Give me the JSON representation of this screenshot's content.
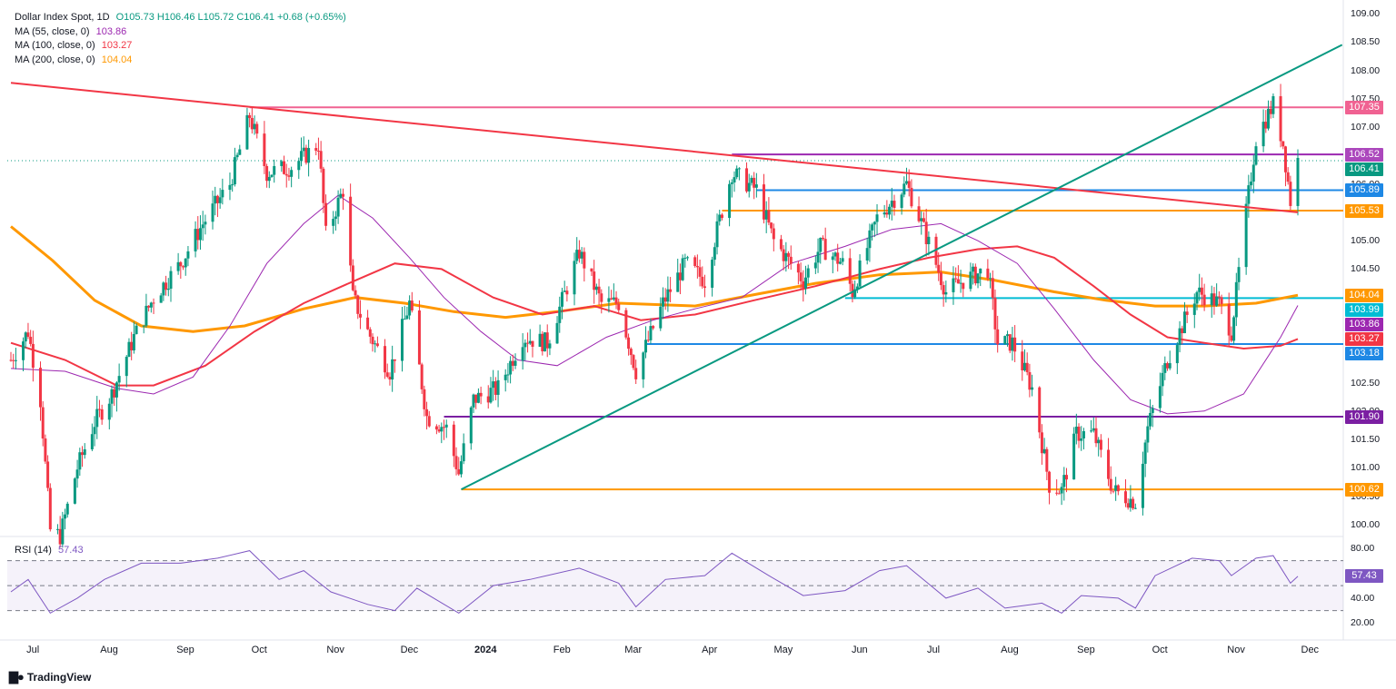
{
  "legend": {
    "symbol": "Dollar Index Spot, 1D",
    "ohlc": "O105.73 H106.46 L105.72 C106.41 +0.68 (+0.65%)",
    "ma55_label": "MA (55, close, 0)",
    "ma55_value": "103.86",
    "ma100_label": "MA (100, close, 0)",
    "ma100_value": "103.27",
    "ma200_label": "MA (200, close, 0)",
    "ma200_value": "104.04",
    "rsi_label": "RSI (14)",
    "rsi_value": "57.43"
  },
  "brand": "TradingView",
  "colors": {
    "up": "#089981",
    "down": "#f23645",
    "ma55": "#9c27b0",
    "ma100": "#f23645",
    "ma200": "#ff9800",
    "rsi": "#7e57c2",
    "trend_up": "#089981",
    "trend_down": "#f23645"
  },
  "chart_data": {
    "type": "candlestick",
    "title": "Dollar Index Spot, 1D",
    "x_ticks": [
      "Jul",
      "Aug",
      "Sep",
      "Oct",
      "Nov",
      "Dec",
      "2024",
      "Feb",
      "Mar",
      "Apr",
      "May",
      "Jun",
      "Jul",
      "Aug",
      "Sep",
      "Oct",
      "Nov",
      "Dec"
    ],
    "y_ticks": [
      "109.00",
      "108.50",
      "108.00",
      "107.50",
      "107.00",
      "106.50",
      "106.00",
      "105.50",
      "105.00",
      "104.50",
      "104.00",
      "103.50",
      "103.00",
      "102.50",
      "102.00",
      "101.50",
      "101.00",
      "100.50",
      "100.00"
    ],
    "ylim": [
      99.95,
      109.0
    ],
    "price_path": [
      [
        "2023-06-28",
        102.9
      ],
      [
        "2023-07-05",
        103.4
      ],
      [
        "2023-07-10",
        102.2
      ],
      [
        "2023-07-14",
        99.9
      ],
      [
        "2023-07-18",
        99.8
      ],
      [
        "2023-07-25",
        101.0
      ],
      [
        "2023-08-01",
        101.8
      ],
      [
        "2023-08-08",
        102.3
      ],
      [
        "2023-08-17",
        103.3
      ],
      [
        "2023-08-25",
        104.0
      ],
      [
        "2023-09-05",
        104.6
      ],
      [
        "2023-09-14",
        105.3
      ],
      [
        "2023-09-25",
        106.0
      ],
      [
        "2023-10-03",
        107.2
      ],
      [
        "2023-10-10",
        106.2
      ],
      [
        "2023-10-20",
        106.3
      ],
      [
        "2023-10-31",
        106.7
      ],
      [
        "2023-11-03",
        105.1
      ],
      [
        "2023-11-10",
        105.9
      ],
      [
        "2023-11-14",
        104.0
      ],
      [
        "2023-11-20",
        103.4
      ],
      [
        "2023-11-29",
        102.7
      ],
      [
        "2023-12-07",
        103.9
      ],
      [
        "2023-12-14",
        101.9
      ],
      [
        "2023-12-22",
        101.7
      ],
      [
        "2023-12-27",
        100.9
      ],
      [
        "2024-01-02",
        102.2
      ],
      [
        "2024-01-12",
        102.4
      ],
      [
        "2024-01-22",
        103.3
      ],
      [
        "2024-02-01",
        103.2
      ],
      [
        "2024-02-14",
        104.8
      ],
      [
        "2024-02-23",
        103.9
      ],
      [
        "2024-03-01",
        103.9
      ],
      [
        "2024-03-08",
        102.7
      ],
      [
        "2024-03-19",
        103.9
      ],
      [
        "2024-03-28",
        104.6
      ],
      [
        "2024-04-05",
        104.3
      ],
      [
        "2024-04-10",
        105.2
      ],
      [
        "2024-04-16",
        106.2
      ],
      [
        "2024-04-26",
        105.9
      ],
      [
        "2024-05-03",
        105.0
      ],
      [
        "2024-05-15",
        104.3
      ],
      [
        "2024-05-22",
        104.9
      ],
      [
        "2024-05-31",
        104.6
      ],
      [
        "2024-06-04",
        104.1
      ],
      [
        "2024-06-14",
        105.4
      ],
      [
        "2024-06-26",
        106.0
      ],
      [
        "2024-07-03",
        105.2
      ],
      [
        "2024-07-12",
        104.1
      ],
      [
        "2024-07-19",
        104.3
      ],
      [
        "2024-07-29",
        104.5
      ],
      [
        "2024-08-02",
        103.2
      ],
      [
        "2024-08-08",
        103.2
      ],
      [
        "2024-08-16",
        102.4
      ],
      [
        "2024-08-23",
        100.7
      ],
      [
        "2024-08-28",
        100.6
      ],
      [
        "2024-09-03",
        101.6
      ],
      [
        "2024-09-10",
        101.6
      ],
      [
        "2024-09-18",
        100.6
      ],
      [
        "2024-09-27",
        100.4
      ],
      [
        "2024-10-02",
        101.7
      ],
      [
        "2024-10-10",
        102.9
      ],
      [
        "2024-10-22",
        104.1
      ],
      [
        "2024-10-31",
        103.9
      ],
      [
        "2024-11-05",
        103.4
      ],
      [
        "2024-11-11",
        105.5
      ],
      [
        "2024-11-15",
        106.8
      ],
      [
        "2024-11-22",
        107.4
      ],
      [
        "2024-11-26",
        106.7
      ],
      [
        "2024-11-29",
        105.7
      ],
      [
        "2024-12-02",
        106.41
      ]
    ],
    "ma55": [
      [
        "2023-06-28",
        102.75
      ],
      [
        "2023-07-20",
        102.7
      ],
      [
        "2023-08-10",
        102.4
      ],
      [
        "2023-08-25",
        102.3
      ],
      [
        "2023-09-10",
        102.6
      ],
      [
        "2023-09-25",
        103.5
      ],
      [
        "2023-10-10",
        104.6
      ],
      [
        "2023-10-25",
        105.3
      ],
      [
        "2023-11-08",
        105.8
      ],
      [
        "2023-11-22",
        105.4
      ],
      [
        "2023-12-07",
        104.7
      ],
      [
        "2023-12-21",
        104.0
      ],
      [
        "2024-01-05",
        103.4
      ],
      [
        "2024-01-20",
        102.9
      ],
      [
        "2024-02-05",
        102.8
      ],
      [
        "2024-02-25",
        103.3
      ],
      [
        "2024-03-15",
        103.6
      ],
      [
        "2024-04-01",
        103.8
      ],
      [
        "2024-04-20",
        104.0
      ],
      [
        "2024-05-10",
        104.6
      ],
      [
        "2024-06-01",
        104.9
      ],
      [
        "2024-06-20",
        105.2
      ],
      [
        "2024-07-10",
        105.3
      ],
      [
        "2024-07-25",
        105.0
      ],
      [
        "2024-08-10",
        104.6
      ],
      [
        "2024-08-25",
        103.8
      ],
      [
        "2024-09-10",
        102.9
      ],
      [
        "2024-09-25",
        102.2
      ],
      [
        "2024-10-10",
        101.95
      ],
      [
        "2024-10-25",
        102.0
      ],
      [
        "2024-11-10",
        102.3
      ],
      [
        "2024-11-25",
        103.3
      ],
      [
        "2024-12-02",
        103.86
      ]
    ],
    "ma100": [
      [
        "2023-06-28",
        103.2
      ],
      [
        "2023-07-20",
        102.9
      ],
      [
        "2023-08-10",
        102.45
      ],
      [
        "2023-08-25",
        102.45
      ],
      [
        "2023-09-15",
        102.8
      ],
      [
        "2023-10-05",
        103.4
      ],
      [
        "2023-10-25",
        103.9
      ],
      [
        "2023-11-15",
        104.3
      ],
      [
        "2023-12-01",
        104.6
      ],
      [
        "2023-12-20",
        104.5
      ],
      [
        "2024-01-10",
        104.0
      ],
      [
        "2024-01-30",
        103.7
      ],
      [
        "2024-02-20",
        103.85
      ],
      [
        "2024-03-10",
        103.6
      ],
      [
        "2024-04-01",
        103.7
      ],
      [
        "2024-04-25",
        103.95
      ],
      [
        "2024-05-20",
        104.2
      ],
      [
        "2024-06-15",
        104.5
      ],
      [
        "2024-07-05",
        104.7
      ],
      [
        "2024-07-25",
        104.85
      ],
      [
        "2024-08-10",
        104.9
      ],
      [
        "2024-08-25",
        104.7
      ],
      [
        "2024-09-10",
        104.2
      ],
      [
        "2024-09-25",
        103.7
      ],
      [
        "2024-10-10",
        103.3
      ],
      [
        "2024-10-25",
        103.2
      ],
      [
        "2024-11-10",
        103.1
      ],
      [
        "2024-11-25",
        103.15
      ],
      [
        "2024-12-02",
        103.27
      ]
    ],
    "ma200": [
      [
        "2023-06-28",
        105.25
      ],
      [
        "2023-07-15",
        104.65
      ],
      [
        "2023-08-01",
        103.95
      ],
      [
        "2023-08-20",
        103.5
      ],
      [
        "2023-09-10",
        103.4
      ],
      [
        "2023-10-01",
        103.5
      ],
      [
        "2023-10-25",
        103.8
      ],
      [
        "2023-11-15",
        104.0
      ],
      [
        "2023-12-05",
        103.9
      ],
      [
        "2023-12-25",
        103.75
      ],
      [
        "2024-01-15",
        103.65
      ],
      [
        "2024-02-05",
        103.75
      ],
      [
        "2024-03-01",
        103.9
      ],
      [
        "2024-04-01",
        103.85
      ],
      [
        "2024-04-25",
        104.05
      ],
      [
        "2024-05-20",
        104.25
      ],
      [
        "2024-06-15",
        104.4
      ],
      [
        "2024-07-10",
        104.45
      ],
      [
        "2024-08-01",
        104.3
      ],
      [
        "2024-08-25",
        104.1
      ],
      [
        "2024-09-15",
        103.95
      ],
      [
        "2024-10-05",
        103.85
      ],
      [
        "2024-10-25",
        103.85
      ],
      [
        "2024-11-15",
        103.9
      ],
      [
        "2024-12-02",
        104.04
      ]
    ],
    "rsi": [
      [
        "2023-06-28",
        45
      ],
      [
        "2023-07-05",
        55
      ],
      [
        "2023-07-14",
        28
      ],
      [
        "2023-07-25",
        40
      ],
      [
        "2023-08-05",
        55
      ],
      [
        "2023-08-20",
        68
      ],
      [
        "2023-09-05",
        68
      ],
      [
        "2023-09-20",
        72
      ],
      [
        "2023-10-03",
        78
      ],
      [
        "2023-10-15",
        55
      ],
      [
        "2023-10-25",
        62
      ],
      [
        "2023-11-05",
        45
      ],
      [
        "2023-11-20",
        35
      ],
      [
        "2023-12-01",
        30
      ],
      [
        "2023-12-10",
        48
      ],
      [
        "2023-12-27",
        28
      ],
      [
        "2024-01-10",
        50
      ],
      [
        "2024-01-25",
        55
      ],
      [
        "2024-02-14",
        64
      ],
      [
        "2024-03-01",
        52
      ],
      [
        "2024-03-08",
        33
      ],
      [
        "2024-03-20",
        55
      ],
      [
        "2024-04-05",
        58
      ],
      [
        "2024-04-16",
        76
      ],
      [
        "2024-05-01",
        58
      ],
      [
        "2024-05-15",
        42
      ],
      [
        "2024-06-01",
        46
      ],
      [
        "2024-06-15",
        62
      ],
      [
        "2024-06-26",
        66
      ],
      [
        "2024-07-12",
        40
      ],
      [
        "2024-07-25",
        48
      ],
      [
        "2024-08-05",
        32
      ],
      [
        "2024-08-20",
        36
      ],
      [
        "2024-08-28",
        28
      ],
      [
        "2024-09-05",
        42
      ],
      [
        "2024-09-20",
        40
      ],
      [
        "2024-09-27",
        32
      ],
      [
        "2024-10-05",
        58
      ],
      [
        "2024-10-20",
        72
      ],
      [
        "2024-10-31",
        70
      ],
      [
        "2024-11-05",
        58
      ],
      [
        "2024-11-15",
        72
      ],
      [
        "2024-11-22",
        74
      ],
      [
        "2024-11-29",
        52
      ],
      [
        "2024-12-02",
        57.43
      ]
    ],
    "rsi_ticks": [
      "80.00",
      "60.00",
      "40.00",
      "20.00"
    ],
    "rsi_levels": [
      70,
      50,
      30
    ],
    "horizontal_levels": [
      {
        "price": 107.35,
        "label": "107.35",
        "color": "#f06292",
        "from": "2023-10-03"
      },
      {
        "price": 106.52,
        "label": "106.52",
        "color": "#9c27b0",
        "from": "2024-04-16"
      },
      {
        "price": 105.89,
        "label": "105.89",
        "color": "#1e88e5",
        "from": "2024-04-26"
      },
      {
        "price": 105.53,
        "label": "105.53",
        "color": "#ff9800",
        "from": "2024-04-12"
      },
      {
        "price": 103.99,
        "label": "103.99",
        "color": "#00bcd4",
        "from": "2024-06-01"
      },
      {
        "price": 103.18,
        "label": "103.18",
        "color": "#1e88e5",
        "from": "2024-03-12"
      },
      {
        "price": 101.9,
        "label": "101.90",
        "color": "#7b1fa2",
        "from": "2023-12-21"
      },
      {
        "price": 100.62,
        "label": "100.62",
        "color": "#ff9800",
        "from": "2023-12-28"
      }
    ],
    "price_tags": [
      {
        "label": "107.35",
        "price": 107.35,
        "color": "#f06292"
      },
      {
        "label": "106.52",
        "price": 106.52,
        "color": "#ab47bc"
      },
      {
        "label": "106.41",
        "price": 106.41,
        "color": "#089981"
      },
      {
        "label": "105.89",
        "price": 105.89,
        "color": "#1e88e5"
      },
      {
        "label": "105.53",
        "price": 105.53,
        "color": "#ff9800"
      },
      {
        "label": "104.04",
        "price": 104.04,
        "color": "#ff9800"
      },
      {
        "label": "103.99",
        "price": 103.99,
        "color": "#00bcd4"
      },
      {
        "label": "103.86",
        "price": 103.86,
        "color": "#9c27b0"
      },
      {
        "label": "103.27",
        "price": 103.27,
        "color": "#f23645"
      },
      {
        "label": "103.18",
        "price": 103.18,
        "color": "#1e88e5"
      },
      {
        "label": "101.90",
        "price": 101.9,
        "color": "#7b1fa2"
      },
      {
        "label": "100.62",
        "price": 100.62,
        "color": "#ff9800"
      }
    ],
    "rsi_tag": {
      "label": "57.43",
      "value": 57.43,
      "color": "#7e57c2"
    },
    "trendlines": [
      {
        "from": [
          "2023-06-28",
          107.78
        ],
        "to": [
          "2024-12-02",
          105.5
        ],
        "color": "#f23645"
      },
      {
        "from": [
          "2023-12-28",
          100.62
        ],
        "to": [
          "2024-12-20",
          108.45
        ],
        "color": "#089981"
      }
    ]
  }
}
